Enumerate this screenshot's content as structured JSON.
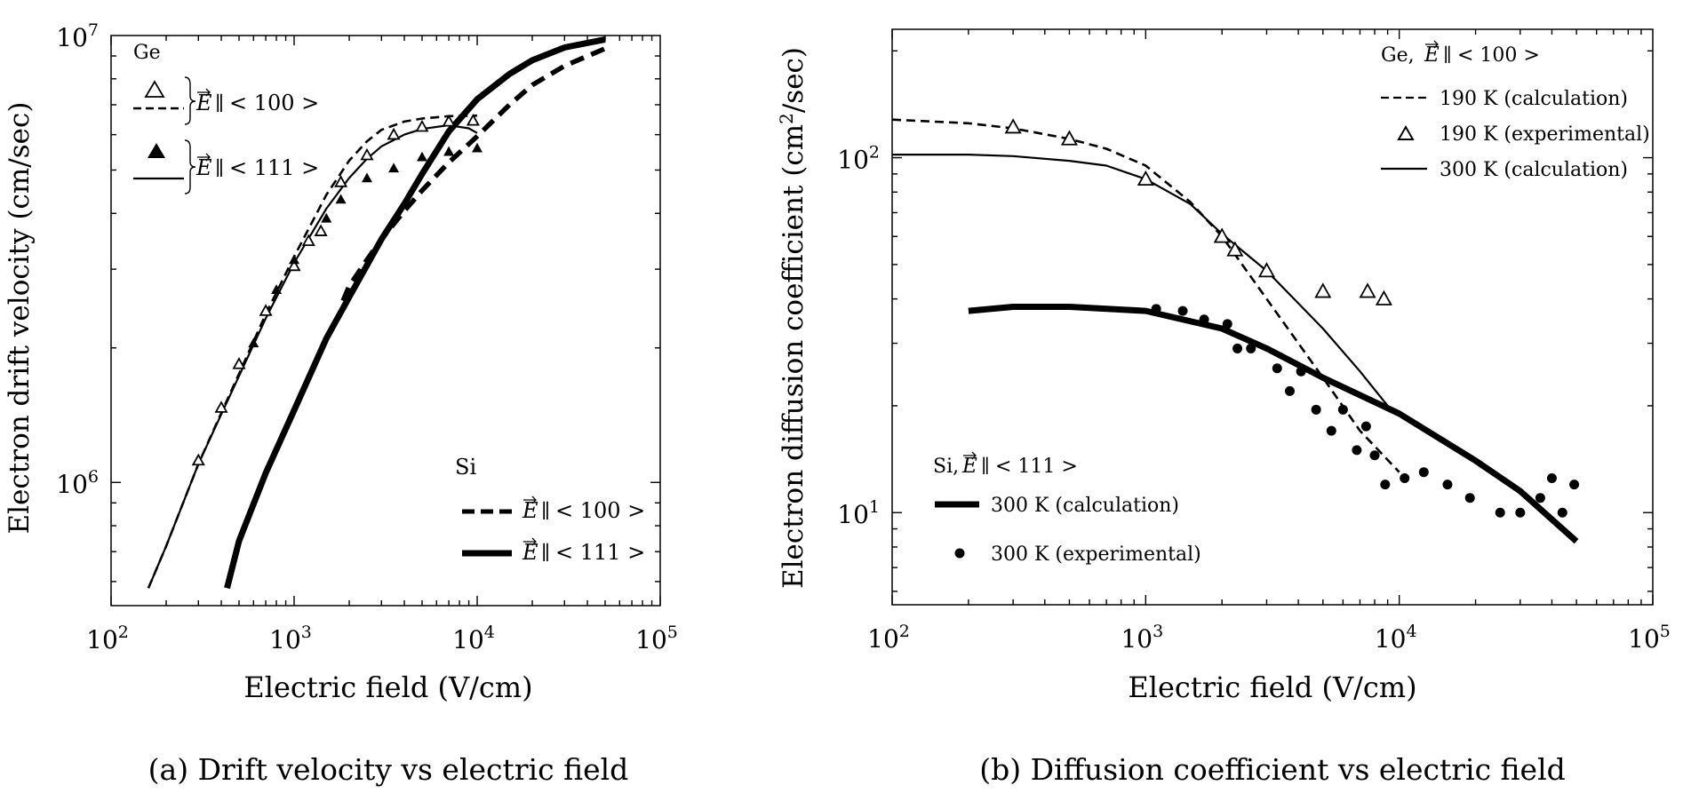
{
  "chart_data": [
    {
      "id": "a",
      "type": "line",
      "title": "",
      "caption": "(a) Drift velocity vs electric field",
      "xlabel": "Electric field (V/cm)",
      "ylabel": "Electron drift velocity (cm/sec)",
      "xscale": "log",
      "yscale": "log",
      "xlim": [
        100,
        100000
      ],
      "ylim": [
        530000,
        10000000
      ],
      "x_ticks": [
        {
          "value": 100,
          "base": "10",
          "exp": "2"
        },
        {
          "value": 1000,
          "base": "10",
          "exp": "3"
        },
        {
          "value": 10000,
          "base": "10",
          "exp": "4"
        },
        {
          "value": 100000,
          "base": "10",
          "exp": "5"
        }
      ],
      "y_ticks": [
        {
          "value": 1000000,
          "base": "10",
          "exp": "6"
        },
        {
          "value": 10000000,
          "base": "10",
          "exp": "7"
        }
      ],
      "group_labels": {
        "ge": "Ge",
        "si": "Si"
      },
      "series": [
        {
          "id": "ge100",
          "name": "Ge, E ∥< 100 >",
          "group": "Ge",
          "style": "dashed-thin",
          "x": [
            160,
            200,
            300,
            400,
            500,
            700,
            1000,
            1500,
            2000,
            2500,
            3000,
            4000,
            5000,
            7000,
            10000
          ],
          "values": [
            580000,
            720000,
            1100000,
            1430000,
            1750000,
            2380000,
            3200000,
            4400000,
            5250000,
            5800000,
            6150000,
            6420000,
            6520000,
            6600000,
            6620000
          ]
        },
        {
          "id": "ge111",
          "name": "Ge, E ∥< 111 >",
          "group": "Ge",
          "style": "solid-thin",
          "x": [
            160,
            200,
            300,
            400,
            500,
            700,
            1000,
            1500,
            2000,
            2500,
            3000,
            4000,
            5000,
            7000,
            9000,
            10000
          ],
          "values": [
            580000,
            720000,
            1100000,
            1420000,
            1730000,
            2330000,
            3100000,
            4100000,
            4800000,
            5300000,
            5650000,
            6000000,
            6180000,
            6300000,
            6200000,
            6050000
          ]
        },
        {
          "id": "si100",
          "name": "Si, E ∥< 100 >",
          "group": "Si",
          "style": "dashed-thick",
          "x": [
            1850,
            2000,
            2500,
            3000,
            4000,
            5000,
            7000,
            10000,
            15000,
            20000,
            30000,
            50000
          ],
          "values": [
            2550000,
            2750000,
            3150000,
            3500000,
            4050000,
            4500000,
            5200000,
            5950000,
            7000000,
            7750000,
            8550000,
            9350000
          ]
        },
        {
          "id": "si111",
          "name": "Si, E ∥< 111 >",
          "group": "Si",
          "style": "solid-thick",
          "x": [
            430,
            500,
            700,
            1000,
            1500,
            2000,
            3000,
            4000,
            5000,
            7000,
            10000,
            15000,
            20000,
            30000,
            50000
          ],
          "values": [
            580000,
            740000,
            1050000,
            1450000,
            2100000,
            2600000,
            3500000,
            4200000,
            4900000,
            6100000,
            7200000,
            8200000,
            8800000,
            9400000,
            9800000
          ]
        },
        {
          "id": "ge100_exp",
          "name": "Ge, E ∥< 100 > (experimental)",
          "group": "Ge",
          "marker": "open-triangle",
          "x": [
            300,
            400,
            500,
            700,
            1000,
            1200,
            1400,
            1800,
            2500,
            3500,
            5000,
            7000,
            9500
          ],
          "values": [
            1120000,
            1470000,
            1840000,
            2420000,
            3050000,
            3470000,
            3650000,
            4700000,
            5400000,
            6000000,
            6250000,
            6420000,
            6450000
          ]
        },
        {
          "id": "ge111_exp",
          "name": "Ge, E ∥< 111 > (experimental)",
          "group": "Ge",
          "marker": "filled-triangle",
          "x": [
            600,
            800,
            1000,
            1500,
            1800,
            2500,
            3500,
            5000,
            7000,
            10000
          ],
          "values": [
            2050000,
            2700000,
            3150000,
            3900000,
            4300000,
            4800000,
            5050000,
            5350000,
            5500000,
            5600000
          ]
        }
      ],
      "legend": {
        "position": "top-left / bottom-right",
        "ge_entries": [
          {
            "ref": "ge100_exp"
          },
          {
            "ref": "ge100",
            "label": "< 100 >"
          },
          {
            "ref": "ge111_exp"
          },
          {
            "ref": "ge111",
            "label": "< 111 >"
          }
        ],
        "si_entries": [
          {
            "ref": "si100",
            "label": "< 100 >"
          },
          {
            "ref": "si111",
            "label": "< 111 >"
          }
        ],
        "vector_symbol": "E",
        "parallel_symbol": "∥"
      }
    },
    {
      "id": "b",
      "type": "line",
      "title": "",
      "caption": "(b) Diffusion coefficient vs electric field",
      "xlabel": "Electric field (V/cm)",
      "ylabel_parts": {
        "text": "Electron diffusion coefficient (cm",
        "sup": "2",
        "tail": "/sec)"
      },
      "xscale": "log",
      "yscale": "log",
      "xlim": [
        100,
        100000
      ],
      "ylim": [
        5.5,
        230
      ],
      "x_ticks": [
        {
          "value": 100,
          "base": "10",
          "exp": "2"
        },
        {
          "value": 1000,
          "base": "10",
          "exp": "3"
        },
        {
          "value": 10000,
          "base": "10",
          "exp": "4"
        },
        {
          "value": 100000,
          "base": "10",
          "exp": "5"
        }
      ],
      "y_ticks": [
        {
          "value": 10,
          "base": "10",
          "exp": "1"
        },
        {
          "value": 100,
          "base": "10",
          "exp": "2"
        }
      ],
      "series": [
        {
          "id": "ge190calc",
          "name": "190 K (calculation)",
          "style": "dashed-thin",
          "x": [
            100,
            200,
            300,
            500,
            700,
            1000,
            1500,
            2000,
            3000,
            4000,
            5000,
            7000,
            10000
          ],
          "values": [
            128,
            125,
            121,
            113,
            106,
            95,
            75,
            60,
            40,
            30,
            24,
            17,
            13
          ]
        },
        {
          "id": "ge300calc",
          "name": "300 K (calculation)",
          "style": "solid-thin",
          "x": [
            100,
            200,
            300,
            500,
            700,
            1000,
            1500,
            2000,
            3000,
            5000,
            7000,
            9000
          ],
          "values": [
            102,
            102,
            101,
            98,
            95,
            87,
            74,
            61,
            48,
            33,
            25,
            20
          ]
        },
        {
          "id": "si300calc",
          "name": "300 K (calculation)",
          "style": "solid-thick",
          "x": [
            200,
            300,
            500,
            1000,
            2000,
            3000,
            5000,
            10000,
            20000,
            30000,
            50000
          ],
          "values": [
            37,
            38,
            38,
            37,
            33,
            29,
            24,
            19,
            14,
            11.5,
            8.3
          ]
        },
        {
          "id": "ge190exp",
          "name": "190 K (experimental)",
          "marker": "open-triangle",
          "x": [
            300,
            500,
            1000,
            2000,
            2250,
            3000,
            5000,
            7500,
            8700
          ],
          "values": [
            122,
            113,
            87,
            60,
            55,
            48,
            42,
            42,
            40
          ]
        },
        {
          "id": "si300exp",
          "name": "300 K (experimental)",
          "marker": "filled-circle",
          "x": [
            1100,
            1400,
            1700,
            2100,
            2300,
            2600,
            3300,
            3700,
            4100,
            4700,
            5400,
            6000,
            6800,
            7400,
            8000,
            8800,
            10500,
            12500,
            15500,
            19000,
            25000,
            30000,
            36000,
            40000,
            44000,
            49000
          ],
          "values": [
            37.5,
            37,
            35,
            34,
            29,
            29,
            25.5,
            22,
            25,
            19.5,
            17,
            19.5,
            15,
            17.5,
            14.5,
            12,
            12.5,
            13,
            12,
            11,
            10,
            10,
            11,
            12.5,
            10,
            12
          ]
        }
      ],
      "legend": {
        "ge_title": "Ge, ",
        "ge_dir": "< 100 >",
        "si_title": "Si, ",
        "si_dir": "< 111 >",
        "vector_symbol": "E",
        "parallel_symbol": "∥",
        "ge_entries": [
          {
            "ref": "ge190calc"
          },
          {
            "ref": "ge190exp"
          },
          {
            "ref": "ge300calc"
          }
        ],
        "si_entries": [
          {
            "ref": "si300calc"
          },
          {
            "ref": "si300exp"
          }
        ]
      }
    }
  ]
}
